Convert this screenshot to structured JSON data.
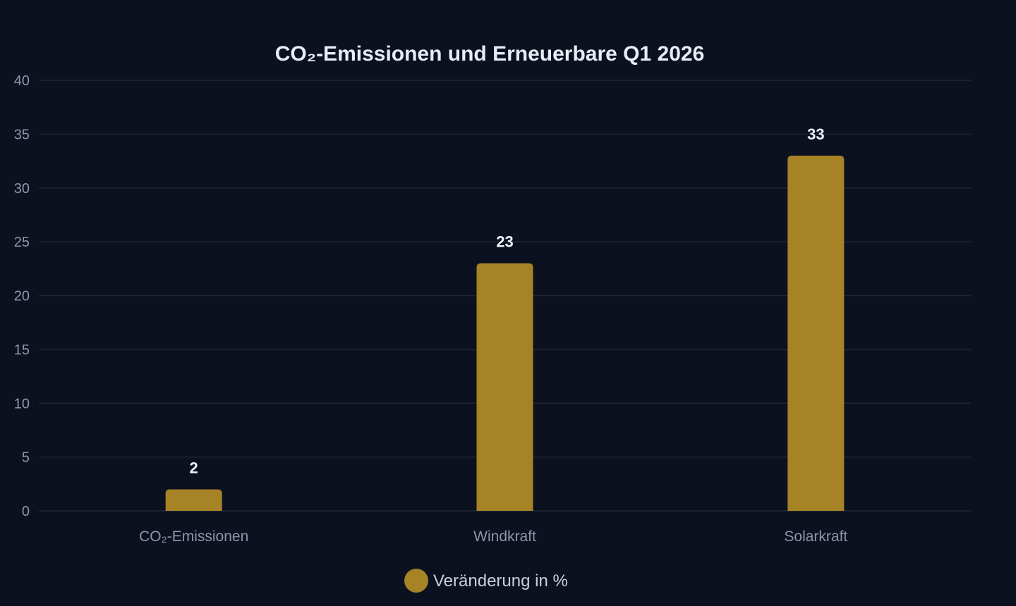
{
  "chart_data": {
    "type": "bar",
    "title": "CO₂-Emissionen und Erneuerbare Q1 2026",
    "categories": [
      "CO₂-Emissionen",
      "Windkraft",
      "Solarkraft"
    ],
    "series": [
      {
        "name": "Veränderung in %",
        "values": [
          2,
          23,
          33
        ],
        "color": "#a68324"
      }
    ],
    "ylim": [
      0,
      40
    ],
    "yticks": [
      0,
      5,
      10,
      15,
      20,
      25,
      30,
      35,
      40
    ],
    "xlabel": "",
    "ylabel": "",
    "grid": true,
    "legend_position": "bottom-center",
    "data_labels": true
  },
  "colors": {
    "background": "#0c1120",
    "bar": "#a68324",
    "grid": "#1f2635",
    "title": "#e8ecf4",
    "tick_text": "#8d96a8"
  }
}
